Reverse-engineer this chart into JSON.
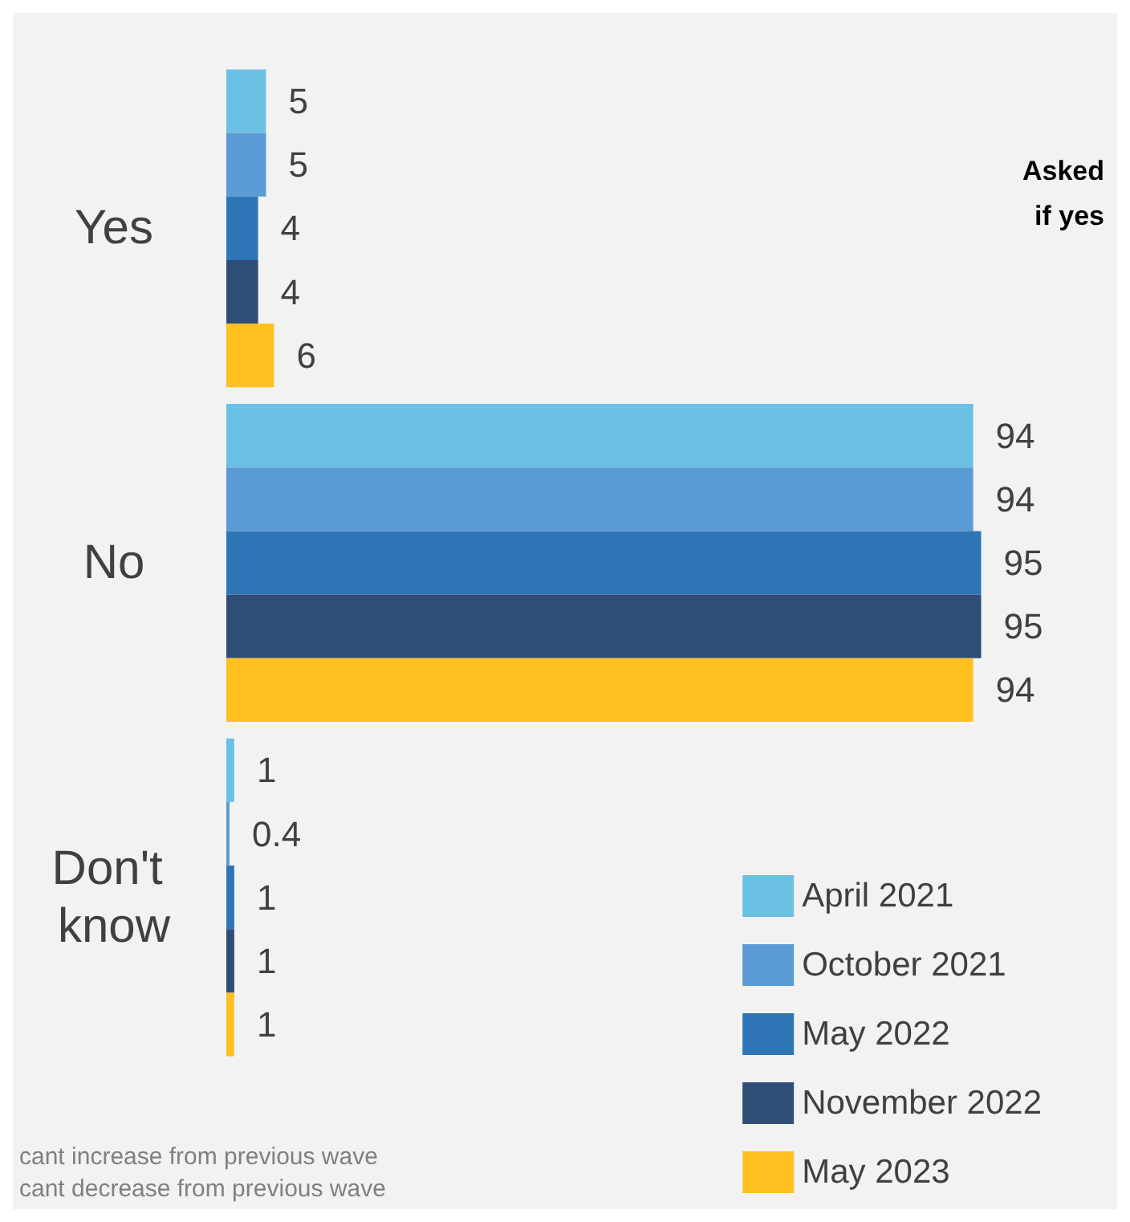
{
  "chart_data": {
    "type": "bar",
    "orientation": "horizontal",
    "categories": [
      "Yes",
      "No",
      "Don't know"
    ],
    "series": [
      {
        "name": "April 2021",
        "color": "#6bc1e3",
        "values": [
          5,
          94,
          1
        ]
      },
      {
        "name": "October 2021",
        "color": "#5b9bd5",
        "values": [
          5,
          94,
          0.4
        ]
      },
      {
        "name": "May 2022",
        "color": "#2e75b6",
        "values": [
          4,
          95,
          1
        ]
      },
      {
        "name": "November 2022",
        "color": "#2f4e75",
        "values": [
          4,
          95,
          1
        ]
      },
      {
        "name": "May 2023",
        "color": "#ffc020",
        "values": [
          6,
          94,
          1
        ]
      }
    ],
    "data_labels": true,
    "tick_labels": "y",
    "legend": "bottom right",
    "annotations": [
      "Asked",
      "if yes",
      "cant increase from previous wave",
      "cant decrease from previous wave"
    ]
  }
}
